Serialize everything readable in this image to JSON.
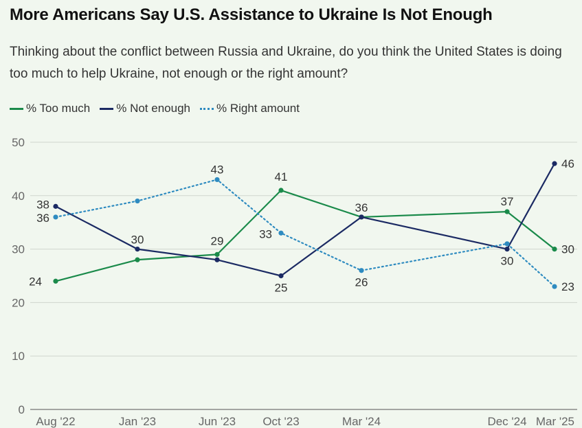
{
  "title": "More Americans Say U.S. Assistance to Ukraine Is Not Enough",
  "subtitle": "Thinking about the conflict between Russia and Ukraine, do you think the United States is doing too much to help Ukraine, not enough or the right amount?",
  "chart_data": {
    "type": "line",
    "title": "More Americans Say U.S. Assistance to Ukraine Is Not Enough",
    "subtitle": "Thinking about the conflict between Russia and Ukraine, do you think the United States is doing too much to help Ukraine, not enough or the right amount?",
    "categories": [
      "Aug '22",
      "Jan '23",
      "Jun '23",
      "Oct '23",
      "Mar '24",
      "Dec '24",
      "Mar '25"
    ],
    "x_dates": [
      "2022-08",
      "2023-01",
      "2023-06",
      "2023-10",
      "2024-03",
      "2024-12",
      "2025-03"
    ],
    "ylim": [
      0,
      50
    ],
    "yticks": [
      0,
      10,
      20,
      30,
      40,
      50
    ],
    "grid": true,
    "legend": "top-left",
    "series": [
      {
        "name": "% Too much",
        "color": "#1a8a4a",
        "style": "solid",
        "values": [
          24,
          28,
          29,
          41,
          36,
          37,
          30
        ],
        "labels": [
          24,
          null,
          29,
          41,
          null,
          37,
          30
        ]
      },
      {
        "name": "% Not enough",
        "color": "#1b2a63",
        "style": "solid",
        "values": [
          38,
          30,
          28,
          25,
          36,
          30,
          46
        ],
        "labels": [
          38,
          30,
          null,
          25,
          36,
          30,
          46
        ]
      },
      {
        "name": "% Right amount",
        "color": "#2e8bc0",
        "style": "dotted",
        "values": [
          36,
          39,
          43,
          33,
          26,
          31,
          23
        ],
        "labels": [
          36,
          null,
          43,
          33,
          26,
          null,
          23
        ]
      }
    ]
  }
}
